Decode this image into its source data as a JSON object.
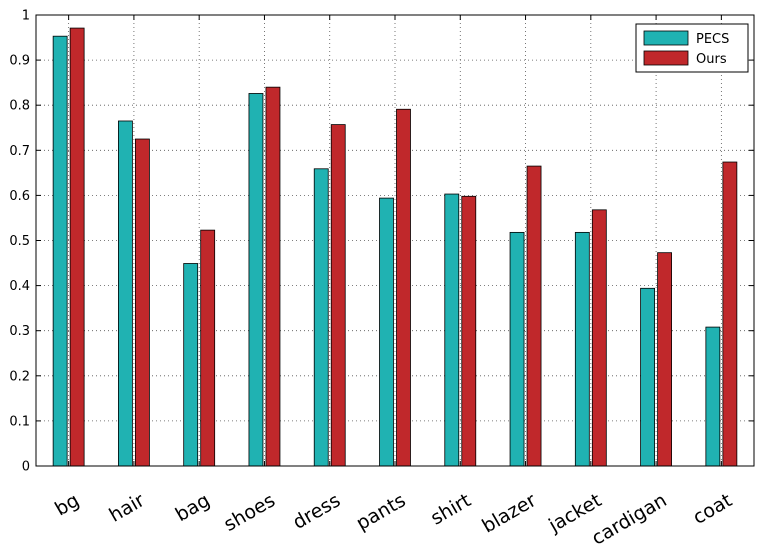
{
  "chart_data": {
    "type": "bar",
    "title": "",
    "xlabel": "",
    "ylabel": "",
    "categories": [
      "bg",
      "hair",
      "bag",
      "shoes",
      "dress",
      "pants",
      "shirt",
      "blazer",
      "jacket",
      "cardigan",
      "coat"
    ],
    "series": [
      {
        "name": "PECS",
        "color": "#20b2b2",
        "values": [
          0.953,
          0.765,
          0.449,
          0.826,
          0.659,
          0.594,
          0.603,
          0.518,
          0.518,
          0.394,
          0.308
        ]
      },
      {
        "name": "Ours",
        "color": "#c0282b",
        "values": [
          0.971,
          0.725,
          0.523,
          0.84,
          0.757,
          0.791,
          0.598,
          0.665,
          0.568,
          0.473,
          0.674
        ]
      }
    ],
    "ylim": [
      0,
      1
    ],
    "yticks": [
      "0",
      "0.1",
      "0.2",
      "0.3",
      "0.4",
      "0.5",
      "0.6",
      "0.7",
      "0.8",
      "0.9",
      "1"
    ],
    "grid": true,
    "legend_position": "top-right"
  }
}
